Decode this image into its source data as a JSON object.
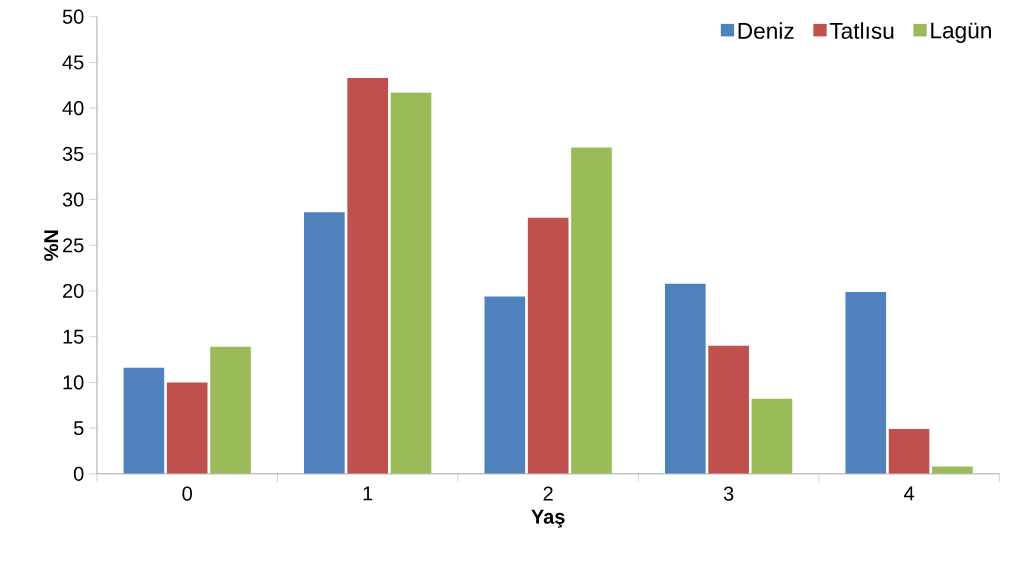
{
  "chart_data": {
    "type": "bar",
    "xlabel": "Yaş",
    "ylabel": "%N",
    "categories": [
      "0",
      "1",
      "2",
      "3",
      "4"
    ],
    "series": [
      {
        "name": "Deniz",
        "color": "#4f81bd",
        "values": [
          11.6,
          28.6,
          19.4,
          20.8,
          19.9
        ]
      },
      {
        "name": "Tatlısu",
        "color": "#c0504d",
        "values": [
          10.0,
          43.3,
          28.0,
          14.0,
          4.9
        ]
      },
      {
        "name": "Lagün",
        "color": "#9bbb59",
        "values": [
          13.9,
          41.7,
          35.7,
          8.2,
          0.8
        ]
      }
    ],
    "ylim": [
      0,
      50
    ],
    "yticks": [
      0,
      5,
      10,
      15,
      20,
      25,
      30,
      35,
      40,
      45,
      50
    ],
    "grid": false,
    "legend": "top right"
  }
}
